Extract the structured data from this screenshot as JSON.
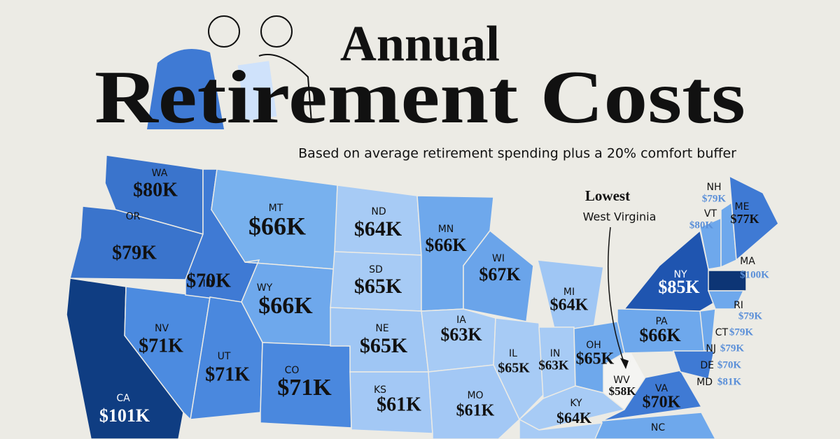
{
  "header": {
    "title_line1": "Annual",
    "title_line2": "Retirement Costs",
    "subtitle": "Based on average retirement spending plus a 20% comfort buffer"
  },
  "annotation": {
    "heading": "Lowest",
    "text": "West Virginia"
  },
  "states": [
    {
      "abbr": "WA",
      "cost": "$80K"
    },
    {
      "abbr": "OR",
      "cost": "$79K"
    },
    {
      "abbr": "CA",
      "cost": "$101K"
    },
    {
      "abbr": "ID",
      "cost": "$70K"
    },
    {
      "abbr": "NV",
      "cost": "$71K"
    },
    {
      "abbr": "MT",
      "cost": "$66K"
    },
    {
      "abbr": "WY",
      "cost": "$66K"
    },
    {
      "abbr": "UT",
      "cost": "$71K"
    },
    {
      "abbr": "CO",
      "cost": "$71K"
    },
    {
      "abbr": "ND",
      "cost": "$64K"
    },
    {
      "abbr": "SD",
      "cost": "$65K"
    },
    {
      "abbr": "NE",
      "cost": "$65K"
    },
    {
      "abbr": "KS",
      "cost": "$61K"
    },
    {
      "abbr": "MN",
      "cost": "$66K"
    },
    {
      "abbr": "IA",
      "cost": "$63K"
    },
    {
      "abbr": "MO",
      "cost": "$61K"
    },
    {
      "abbr": "WI",
      "cost": "$67K"
    },
    {
      "abbr": "IL",
      "cost": "$65K"
    },
    {
      "abbr": "MI",
      "cost": "$64K"
    },
    {
      "abbr": "IN",
      "cost": "$63K"
    },
    {
      "abbr": "OH",
      "cost": "$65K"
    },
    {
      "abbr": "KY",
      "cost": "$64K"
    },
    {
      "abbr": "WV",
      "cost": "$58K"
    },
    {
      "abbr": "VA",
      "cost": "$70K"
    },
    {
      "abbr": "PA",
      "cost": "$66K"
    },
    {
      "abbr": "NY",
      "cost": "$85K"
    },
    {
      "abbr": "NC"
    },
    {
      "abbr": "NH",
      "cost": "$79K"
    },
    {
      "abbr": "VT",
      "cost": "$80K"
    },
    {
      "abbr": "ME",
      "cost": "$77K"
    },
    {
      "abbr": "MA",
      "cost": "$100K"
    },
    {
      "abbr": "RI",
      "cost": "$79K"
    },
    {
      "abbr": "CT",
      "cost": "$79K"
    },
    {
      "abbr": "NJ",
      "cost": "$79K"
    },
    {
      "abbr": "DE",
      "cost": "$70K"
    },
    {
      "abbr": "MD",
      "cost": "$81K"
    }
  ]
}
